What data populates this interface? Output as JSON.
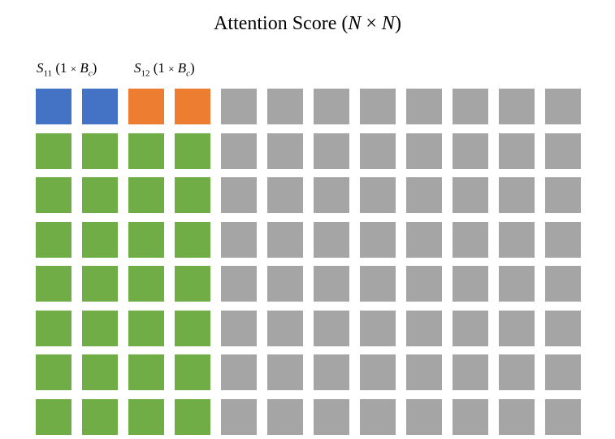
{
  "title": {
    "prefix": "Attention Score (",
    "n1": "N",
    "times": " × ",
    "n2": "N",
    "suffix": ")"
  },
  "labels": {
    "s11": {
      "symbol": "S",
      "sub": "11",
      "open": " (1 ",
      "times": "×",
      "b": " B",
      "c": "c",
      "close": ")"
    },
    "s12": {
      "symbol": "S",
      "sub": "12",
      "open": " (1 ",
      "times": "×",
      "b": " B",
      "c": "c",
      "close": ")"
    }
  },
  "colors": {
    "s11_block": "#4472c4",
    "s12_block": "#ed7d31",
    "computed": "#70ad47",
    "pending": "#a5a5a5"
  },
  "grid": {
    "rows": 8,
    "cols": 12,
    "cells": [
      [
        "s11_block",
        "s11_block",
        "s12_block",
        "s12_block",
        "pending",
        "pending",
        "pending",
        "pending",
        "pending",
        "pending",
        "pending",
        "pending"
      ],
      [
        "computed",
        "computed",
        "computed",
        "computed",
        "pending",
        "pending",
        "pending",
        "pending",
        "pending",
        "pending",
        "pending",
        "pending"
      ],
      [
        "computed",
        "computed",
        "computed",
        "computed",
        "pending",
        "pending",
        "pending",
        "pending",
        "pending",
        "pending",
        "pending",
        "pending"
      ],
      [
        "computed",
        "computed",
        "computed",
        "computed",
        "pending",
        "pending",
        "pending",
        "pending",
        "pending",
        "pending",
        "pending",
        "pending"
      ],
      [
        "computed",
        "computed",
        "computed",
        "computed",
        "pending",
        "pending",
        "pending",
        "pending",
        "pending",
        "pending",
        "pending",
        "pending"
      ],
      [
        "computed",
        "computed",
        "computed",
        "computed",
        "pending",
        "pending",
        "pending",
        "pending",
        "pending",
        "pending",
        "pending",
        "pending"
      ],
      [
        "computed",
        "computed",
        "computed",
        "computed",
        "pending",
        "pending",
        "pending",
        "pending",
        "pending",
        "pending",
        "pending",
        "pending"
      ],
      [
        "computed",
        "computed",
        "computed",
        "computed",
        "pending",
        "pending",
        "pending",
        "pending",
        "pending",
        "pending",
        "pending",
        "pending"
      ]
    ]
  }
}
